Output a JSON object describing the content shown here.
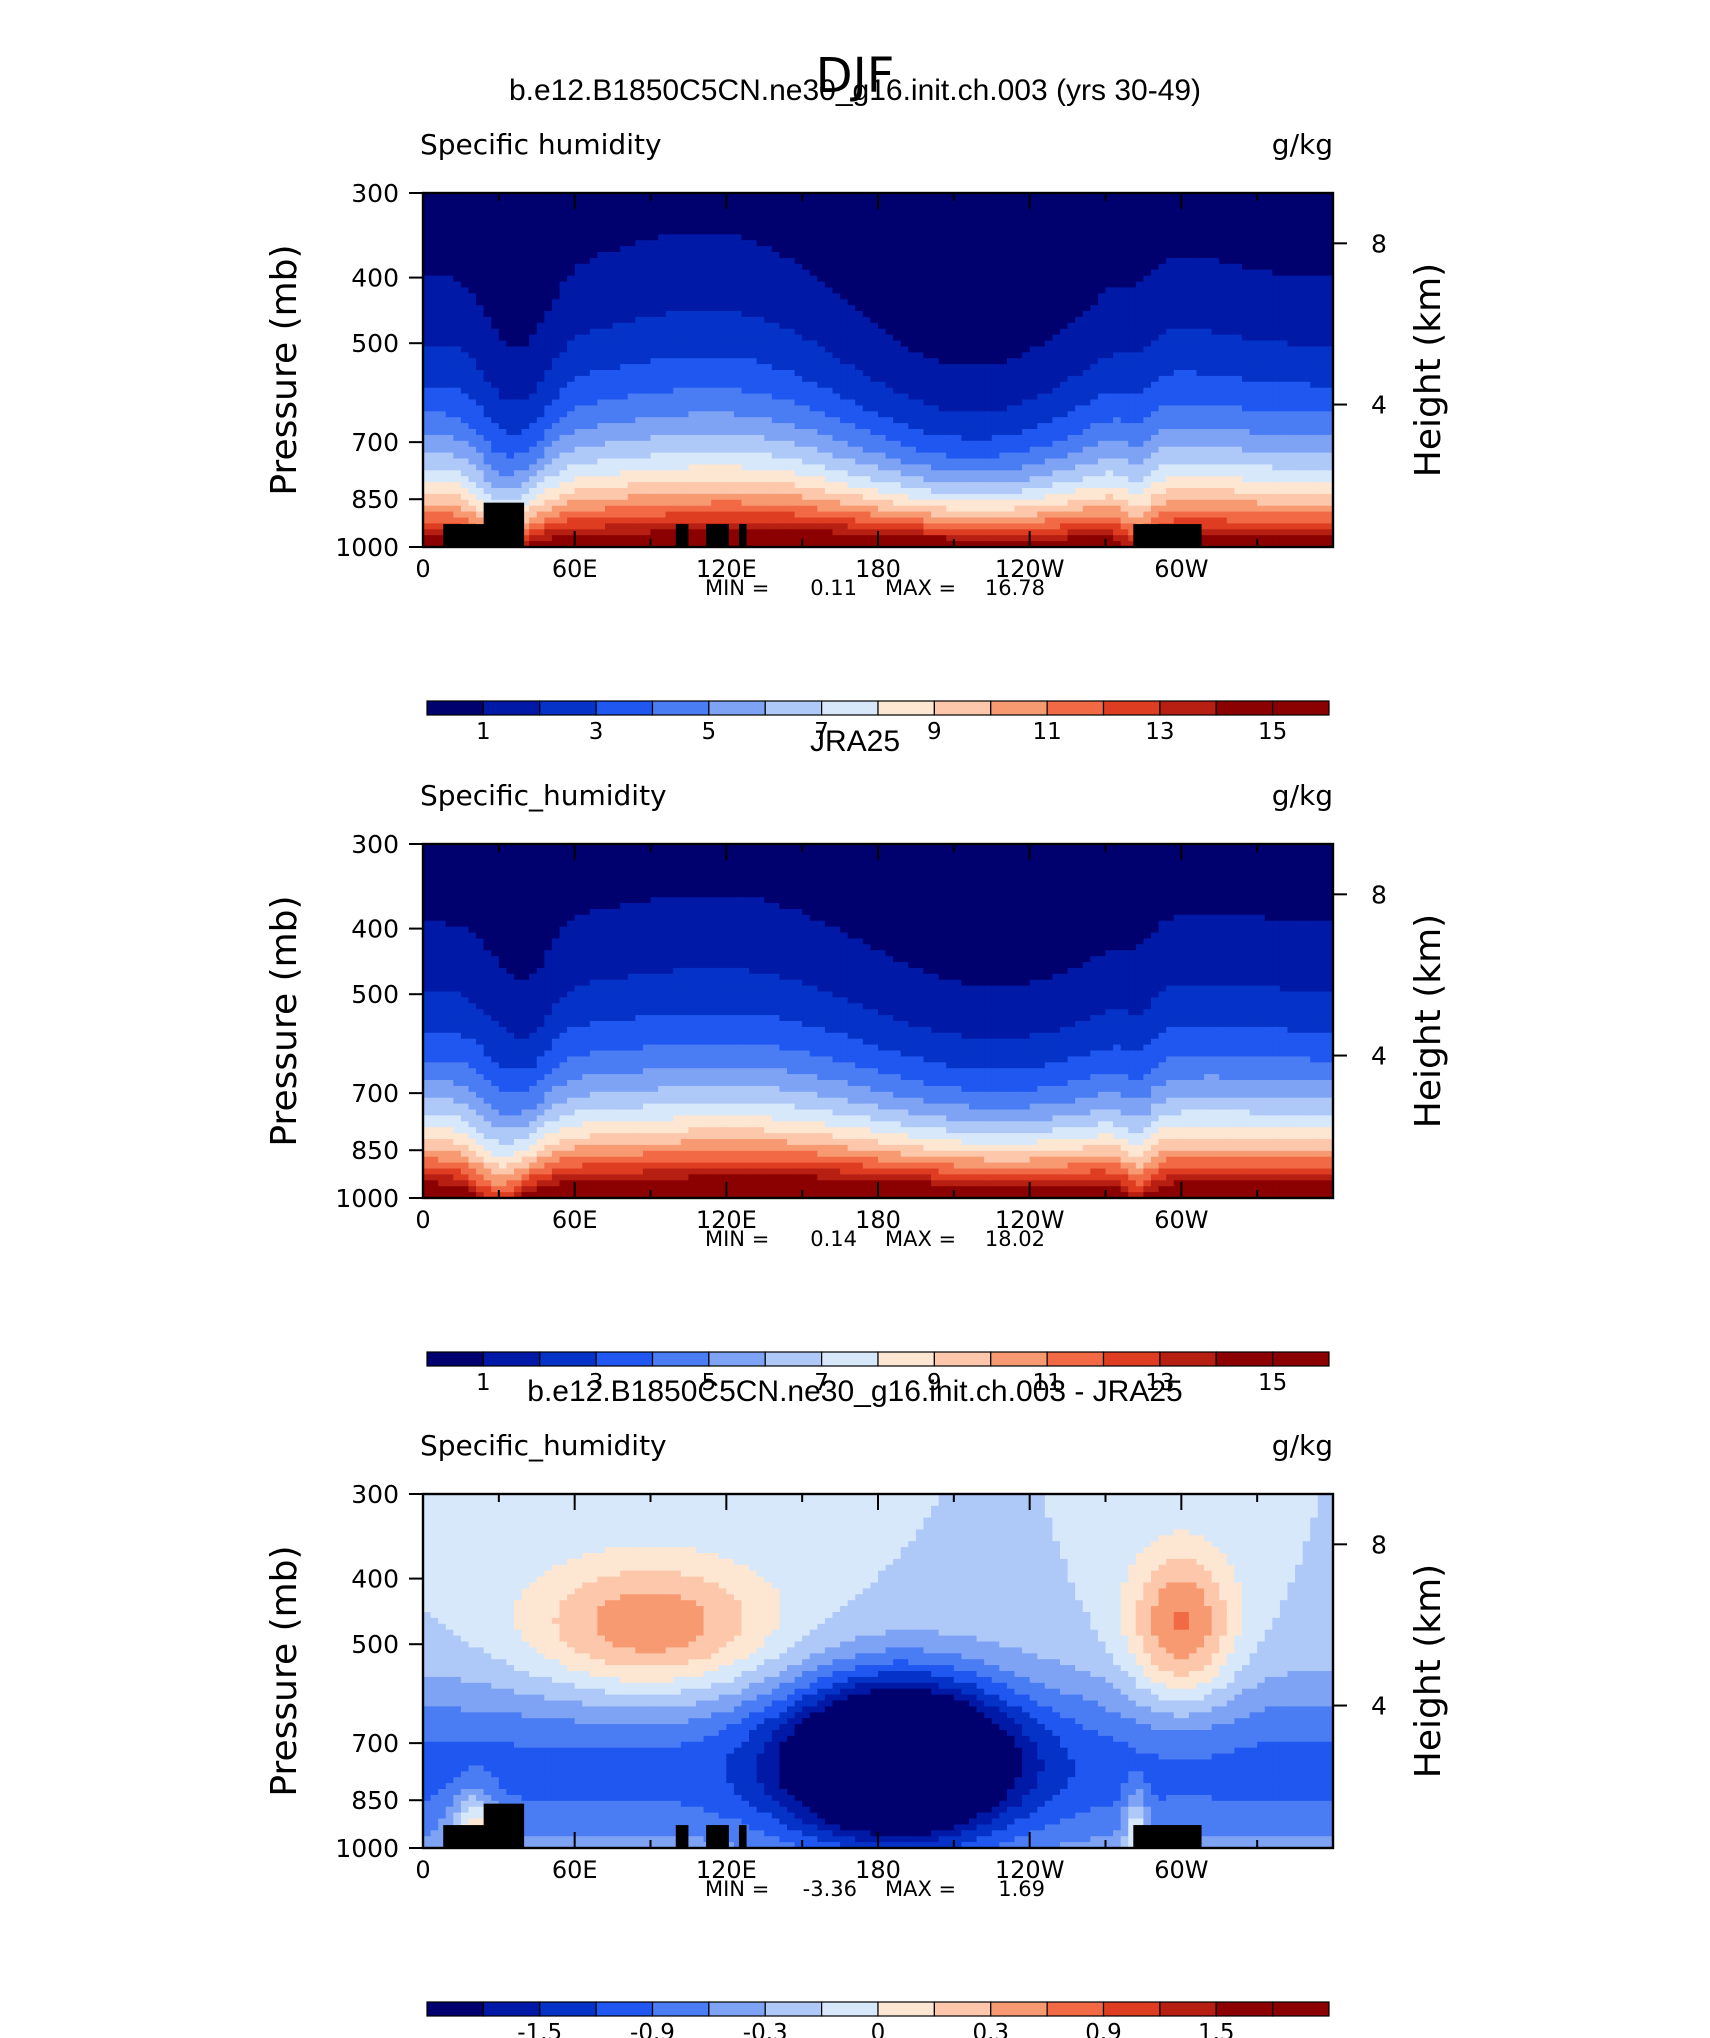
{
  "page_title": "DJF",
  "colors": {
    "model_palette": [
      "#00006e",
      "#0019a6",
      "#0533c8",
      "#1f57f0",
      "#4a7cf3",
      "#7ea3f4",
      "#aec8f8",
      "#d7e8fb",
      "#fde6d2",
      "#fcc7aa",
      "#f79a72",
      "#f16a45",
      "#df3d21",
      "#b71f12",
      "#8b0000"
    ],
    "diff_palette": [
      "#00006e",
      "#0019a6",
      "#0533c8",
      "#1f57f0",
      "#4a7cf3",
      "#7ea3f4",
      "#aec8f8",
      "#d7e8fb",
      "#fde6d2",
      "#fcc7aa",
      "#f79a72",
      "#f16a45",
      "#df3d21",
      "#b71f12",
      "#8b0000"
    ],
    "topography": "#000000"
  },
  "chart_data": [
    {
      "type": "contour",
      "title": "b.e12.B1850C5CN.ne30_g16.init.ch.003 (yrs 30-49)",
      "left_label": "Specific humidity",
      "right_label": "g/kg",
      "ylabel": "Pressure (mb)",
      "ylabel_right": "Height (km)",
      "y_ticks": [
        "300",
        "400",
        "500",
        "700",
        "850",
        "1000"
      ],
      "y_ticks_right": [
        "8",
        "4"
      ],
      "x_ticks": [
        "0",
        "60E",
        "120E",
        "180",
        "120W",
        "60W"
      ],
      "xlim": [
        0,
        360
      ],
      "ylim": [
        1000,
        300
      ],
      "stats": {
        "min_label": "MIN =",
        "min": "0.11",
        "max_label": "MAX =",
        "max": "16.78"
      },
      "colorbar_labels": [
        "1",
        "3",
        "5",
        "7",
        "9",
        "11",
        "13",
        "15"
      ],
      "topography": true
    },
    {
      "type": "contour",
      "title": "JRA25",
      "left_label": "Specific_humidity",
      "right_label": "g/kg",
      "ylabel": "Pressure (mb)",
      "ylabel_right": "Height (km)",
      "y_ticks": [
        "300",
        "400",
        "500",
        "700",
        "850",
        "1000"
      ],
      "y_ticks_right": [
        "8",
        "4"
      ],
      "x_ticks": [
        "0",
        "60E",
        "120E",
        "180",
        "120W",
        "60W"
      ],
      "xlim": [
        0,
        360
      ],
      "ylim": [
        1000,
        300
      ],
      "stats": {
        "min_label": "MIN =",
        "min": "0.14",
        "max_label": "MAX =",
        "max": "18.02"
      },
      "colorbar_labels": [
        "1",
        "3",
        "5",
        "7",
        "9",
        "11",
        "13",
        "15"
      ],
      "topography": false
    },
    {
      "type": "contour",
      "title": "b.e12.B1850C5CN.ne30_g16.init.ch.003 - JRA25",
      "left_label": "Specific_humidity",
      "right_label": "g/kg",
      "ylabel": "Pressure (mb)",
      "ylabel_right": "Height (km)",
      "y_ticks": [
        "300",
        "400",
        "500",
        "700",
        "850",
        "1000"
      ],
      "y_ticks_right": [
        "8",
        "4"
      ],
      "x_ticks": [
        "0",
        "60E",
        "120E",
        "180",
        "120W",
        "60W"
      ],
      "xlim": [
        0,
        360
      ],
      "ylim": [
        1000,
        300
      ],
      "stats": {
        "min_label": "MIN =",
        "min": "-3.36",
        "max_label": "MAX =",
        "max": "1.69"
      },
      "colorbar_labels": [
        "-1.5",
        "-0.9",
        "-0.3",
        "0",
        "0.3",
        "0.9",
        "1.5"
      ],
      "topography": true
    }
  ]
}
